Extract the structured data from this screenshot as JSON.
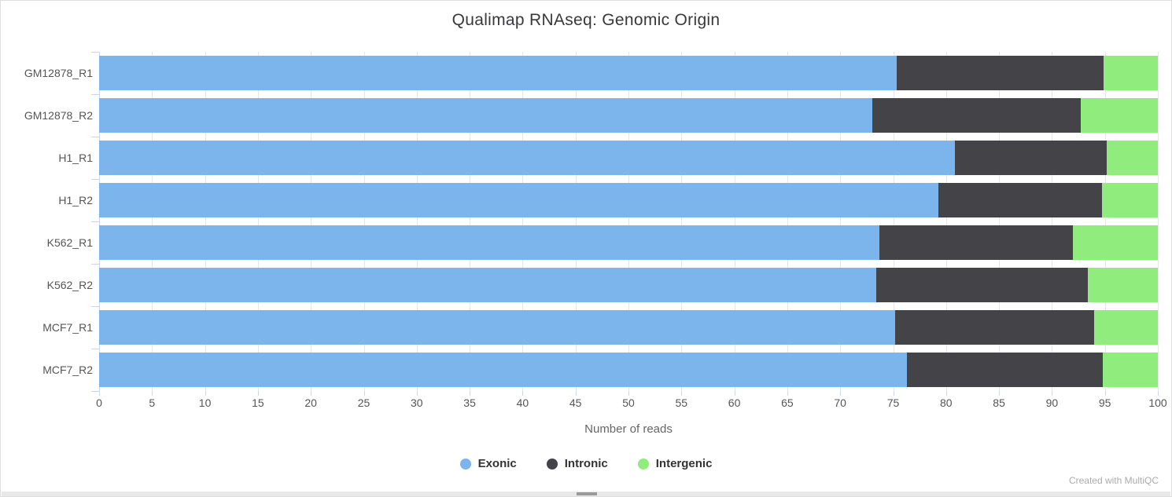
{
  "title": "Qualimap RNAseq: Genomic Origin",
  "watermark": "Created with MultiQC",
  "axis": {
    "ticks": [
      0,
      5,
      10,
      15,
      20,
      25,
      30,
      35,
      40,
      45,
      50,
      55,
      60,
      65,
      70,
      75,
      80,
      85,
      90,
      95,
      100
    ]
  },
  "legend": [
    {
      "label": "Exonic",
      "color": "#7cb5ec"
    },
    {
      "label": "Intronic",
      "color": "#434348"
    },
    {
      "label": "Intergenic",
      "color": "#90ed7d"
    }
  ],
  "chart_data": {
    "type": "bar",
    "orientation": "horizontal",
    "stacked": true,
    "title": "Qualimap RNAseq: Genomic Origin",
    "xlabel": "Number of reads",
    "ylabel": "",
    "xlim": [
      0,
      100
    ],
    "xtick_step": 5,
    "grid": true,
    "legend_position": "bottom",
    "categories": [
      "GM12878_R1",
      "GM12878_R2",
      "H1_R1",
      "H1_R2",
      "K562_R1",
      "K562_R2",
      "MCF7_R1",
      "MCF7_R2"
    ],
    "series": [
      {
        "name": "Exonic",
        "color": "#7cb5ec",
        "values": [
          75.3,
          73.0,
          80.8,
          79.3,
          73.7,
          73.4,
          75.2,
          76.3
        ]
      },
      {
        "name": "Intronic",
        "color": "#434348",
        "values": [
          19.6,
          19.7,
          14.4,
          15.4,
          18.3,
          20.0,
          18.8,
          18.5
        ]
      },
      {
        "name": "Intergenic",
        "color": "#90ed7d",
        "values": [
          5.1,
          7.3,
          4.8,
          5.3,
          8.0,
          6.6,
          6.0,
          5.2
        ]
      }
    ]
  }
}
